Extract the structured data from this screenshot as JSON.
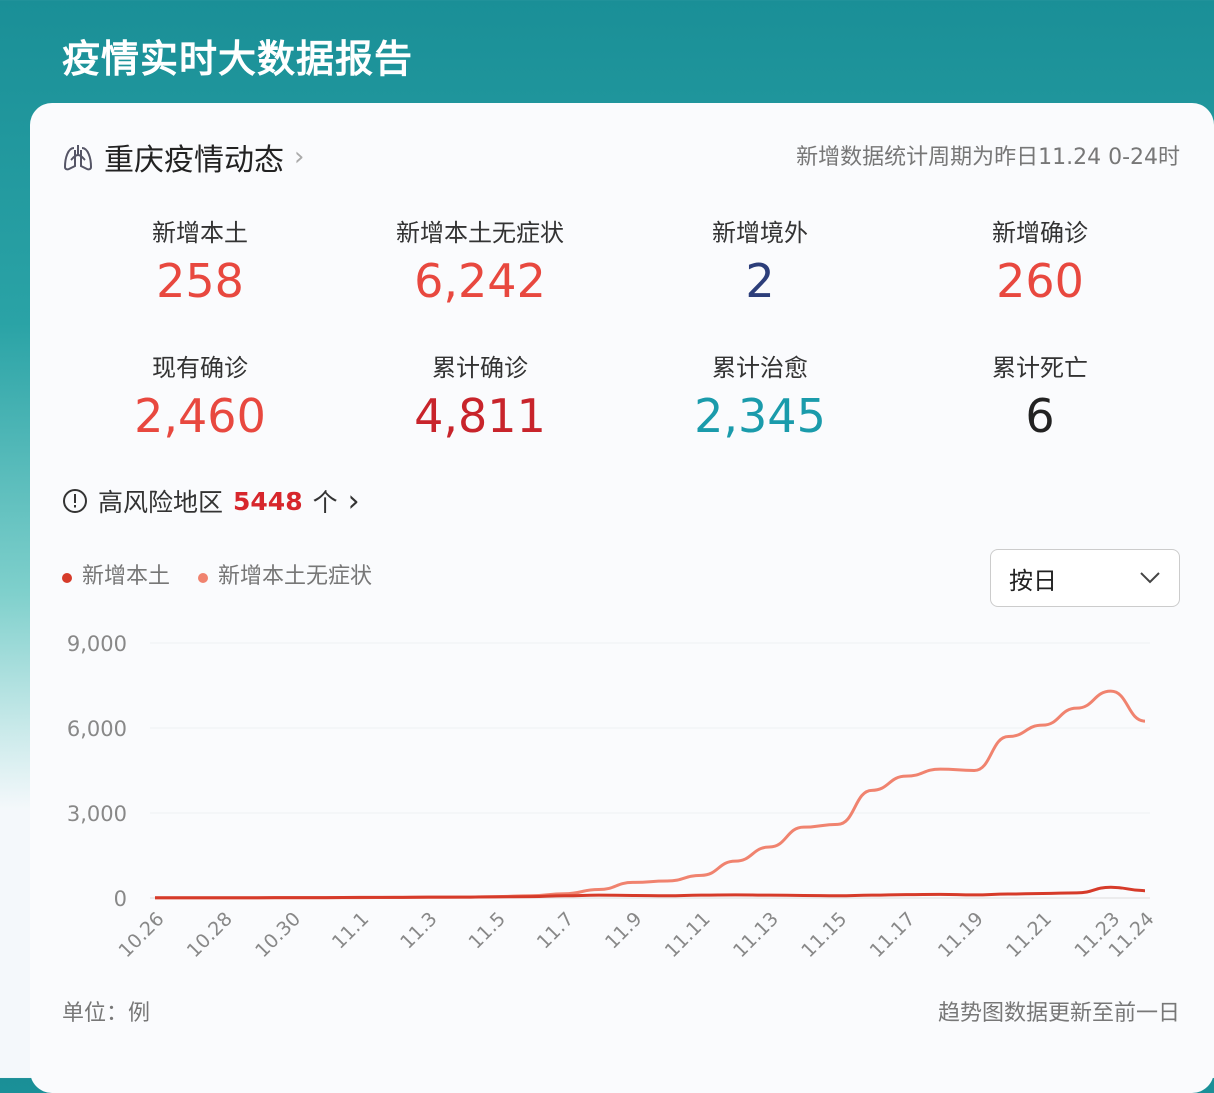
{
  "title": "疫情实时大数据报告",
  "section": {
    "title": "重庆疫情动态",
    "period_note": "新增数据统计周期为昨日11.24 0-24时"
  },
  "stats": [
    {
      "label": "新增本土",
      "value": "258",
      "color": "#e8483f"
    },
    {
      "label": "新增本土无症状",
      "value": "6,242",
      "color": "#e8483f"
    },
    {
      "label": "新增境外",
      "value": "2",
      "color": "#2c3e7a"
    },
    {
      "label": "新增确诊",
      "value": "260",
      "color": "#e8483f"
    },
    {
      "label": "现有确诊",
      "value": "2,460",
      "color": "#e8483f"
    },
    {
      "label": "累计确诊",
      "value": "4,811",
      "color": "#c8242b"
    },
    {
      "label": "累计治愈",
      "value": "2,345",
      "color": "#1a9bab"
    },
    {
      "label": "累计死亡",
      "value": "6",
      "color": "#222222"
    }
  ],
  "risk": {
    "label": "高风险地区",
    "count": "5448",
    "unit": "个"
  },
  "select": {
    "value": "按日"
  },
  "footer": {
    "unit": "单位：例",
    "note": "趋势图数据更新至前一日"
  },
  "chart_data": {
    "type": "line",
    "x": [
      "10.26",
      "10.27",
      "10.28",
      "10.29",
      "10.30",
      "10.31",
      "11.1",
      "11.2",
      "11.3",
      "11.4",
      "11.5",
      "11.6",
      "11.7",
      "11.8",
      "11.9",
      "11.10",
      "11.11",
      "11.12",
      "11.13",
      "11.14",
      "11.15",
      "11.16",
      "11.17",
      "11.18",
      "11.19",
      "11.20",
      "11.21",
      "11.22",
      "11.23",
      "11.24"
    ],
    "xticks": [
      "10.26",
      "10.28",
      "10.30",
      "11.1",
      "11.3",
      "11.5",
      "11.7",
      "11.9",
      "11.11",
      "11.13",
      "11.15",
      "11.17",
      "11.19",
      "11.21",
      "11.23",
      "11.24"
    ],
    "yticks": [
      "0",
      "3,000",
      "6,000",
      "9,000"
    ],
    "ylim": [
      0,
      9000
    ],
    "grid": true,
    "legend_position": "top-left",
    "series": [
      {
        "name": "新增本土",
        "color": "#d63b2a",
        "values": [
          10,
          10,
          10,
          10,
          15,
          15,
          20,
          20,
          30,
          30,
          40,
          50,
          80,
          100,
          90,
          80,
          100,
          110,
          100,
          90,
          80,
          100,
          120,
          130,
          110,
          140,
          160,
          180,
          380,
          258
        ]
      },
      {
        "name": "新增本土无症状",
        "color": "#f0836f",
        "values": [
          5,
          5,
          5,
          5,
          10,
          10,
          15,
          20,
          25,
          30,
          50,
          80,
          150,
          300,
          550,
          600,
          800,
          1300,
          1800,
          2500,
          2600,
          3800,
          4300,
          4550,
          4500,
          5700,
          6100,
          6700,
          7300,
          6242
        ]
      }
    ]
  }
}
